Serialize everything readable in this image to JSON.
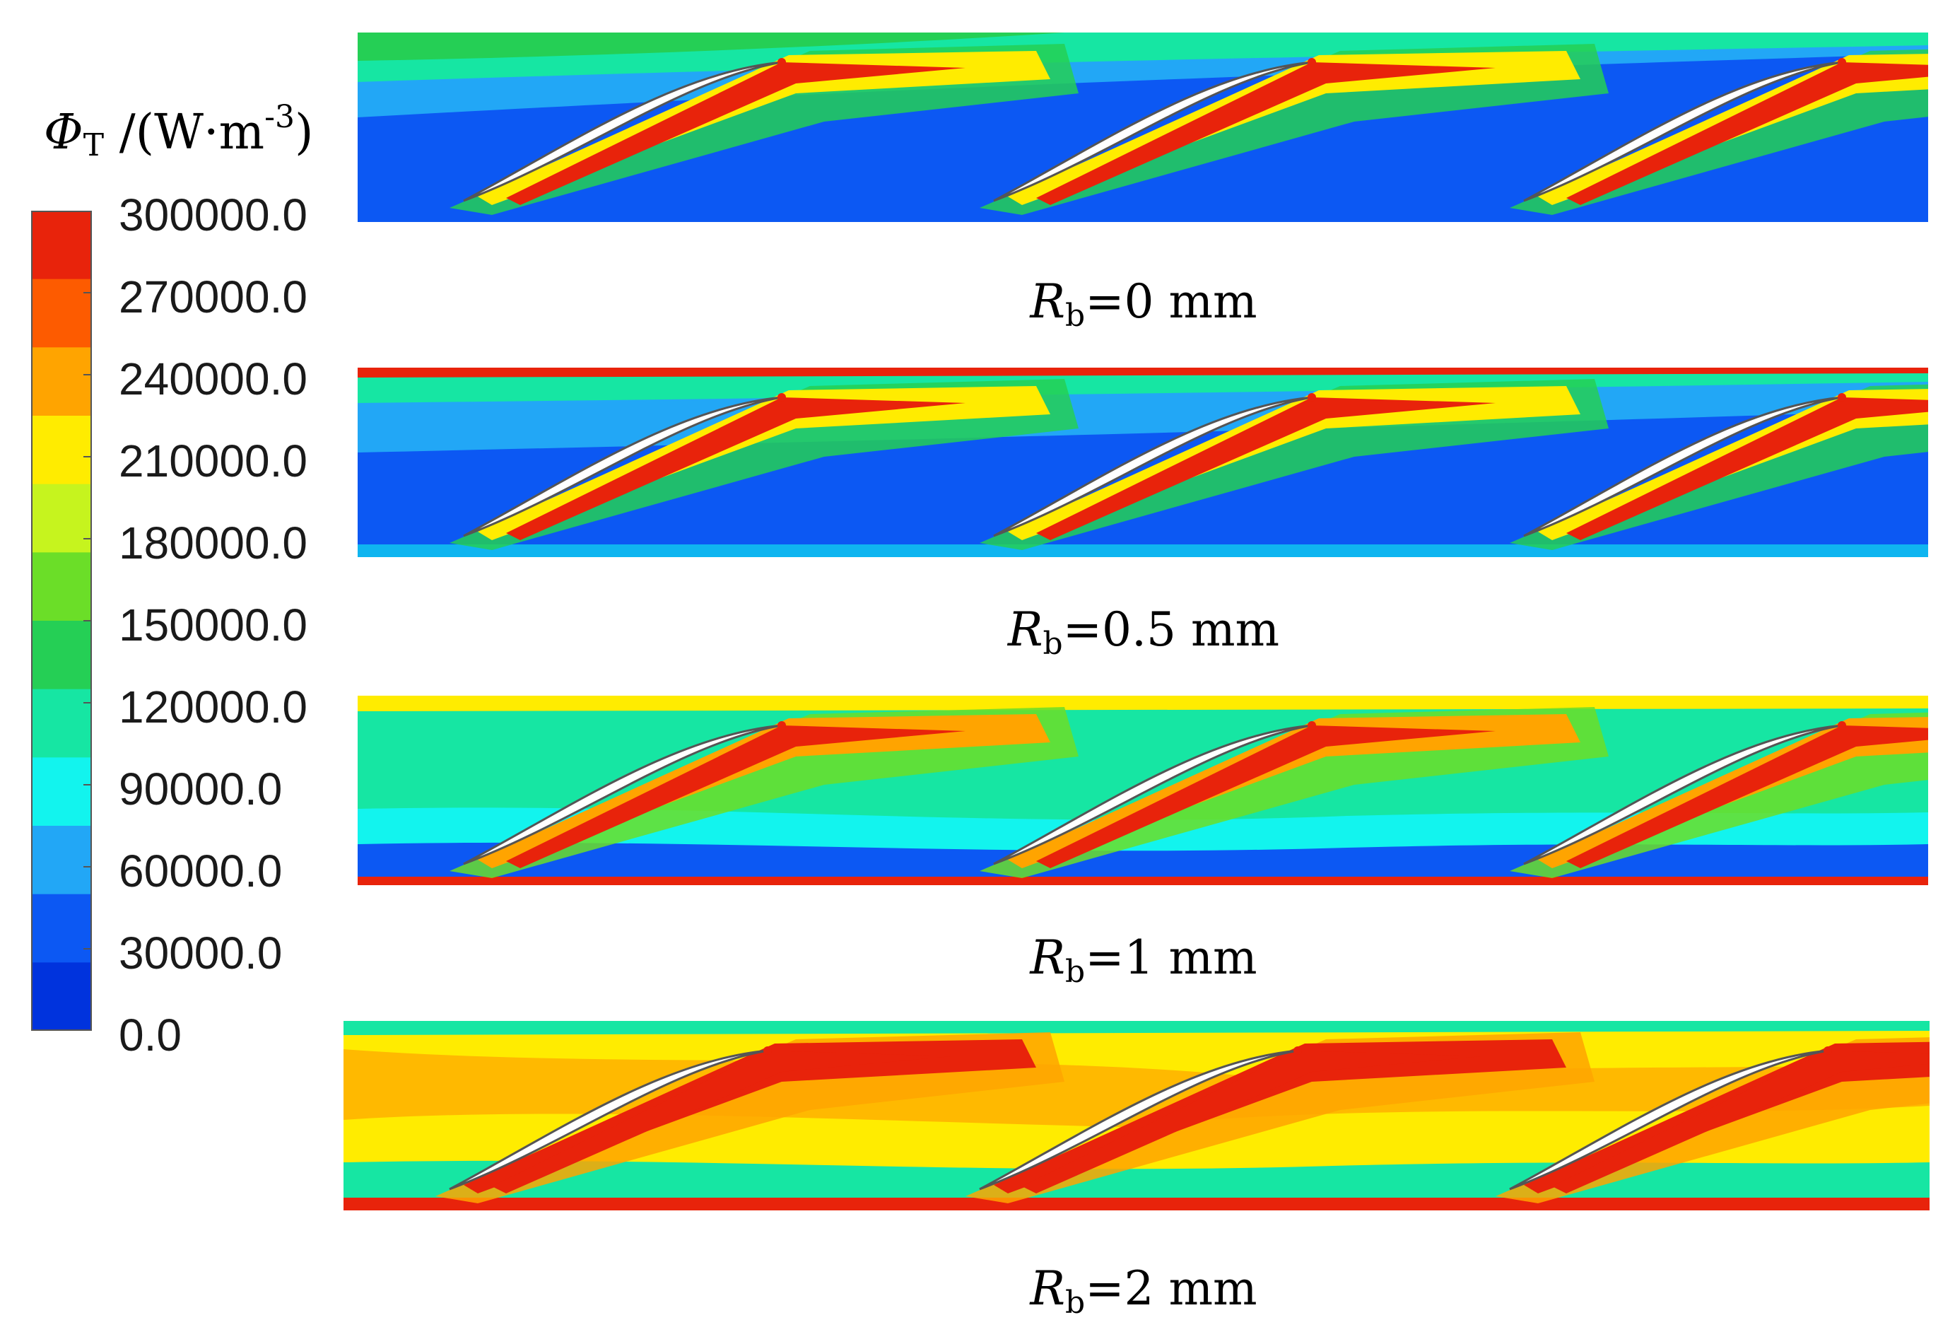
{
  "legend": {
    "title": {
      "symbol": "Φ",
      "subscript": "T",
      "unit_open": " /(W·m",
      "unit_sup": "-3",
      "unit_close": ")"
    },
    "ticks": [
      "300000.0",
      "270000.0",
      "240000.0",
      "210000.0",
      "180000.0",
      "150000.0",
      "120000.0",
      "90000.0",
      "60000.0",
      "30000.0",
      "0.0"
    ],
    "band_colors": [
      "#e8230b",
      "#fd5b00",
      "#ffa400",
      "#ffec00",
      "#c6f41e",
      "#6bde28",
      "#25cf55",
      "#16e6a3",
      "#12f4ee",
      "#22a7f6",
      "#0c58f3",
      "#0033dd"
    ]
  },
  "panels": [
    {
      "var": "R",
      "sub": "b",
      "value": "=0 mm"
    },
    {
      "var": "R",
      "sub": "b",
      "value": "=0.5 mm"
    },
    {
      "var": "R",
      "sub": "b",
      "value": "=1 mm"
    },
    {
      "var": "R",
      "sub": "b",
      "value": "=2 mm"
    }
  ]
}
